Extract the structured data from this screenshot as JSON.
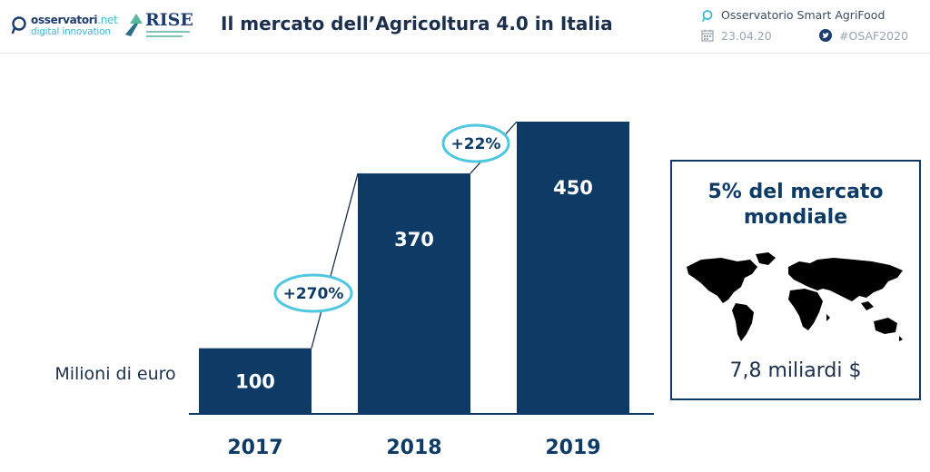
{
  "header": {
    "logo_observatori_line1": "osservatori",
    "logo_observatori_line1_suffix": ".net",
    "logo_observatori_line2": "digital innovation",
    "logo_rise": "RISE",
    "title": "Il mercato dell’Agricoltura 4.0 in Italia",
    "observatory": "Osservatorio Smart AgriFood",
    "date": "23.04.20",
    "hashtag": "#OSAF2020"
  },
  "chart_data": {
    "type": "bar",
    "categories": [
      "2017",
      "2018",
      "2019"
    ],
    "values": [
      100,
      370,
      450
    ],
    "unit_label": "Milioni di euro",
    "ylim": [
      0,
      450
    ],
    "bar_color": "#0d3b66",
    "growth_annotations": [
      {
        "from": "2017",
        "to": "2018",
        "label": "+270%"
      },
      {
        "from": "2018",
        "to": "2019",
        "label": "+22%"
      }
    ],
    "annotation_color": "#4fc7e0"
  },
  "info_box": {
    "title_line1": "5% del mercato",
    "title_line2": "mondiale",
    "value": "7,8 miliardi $"
  }
}
